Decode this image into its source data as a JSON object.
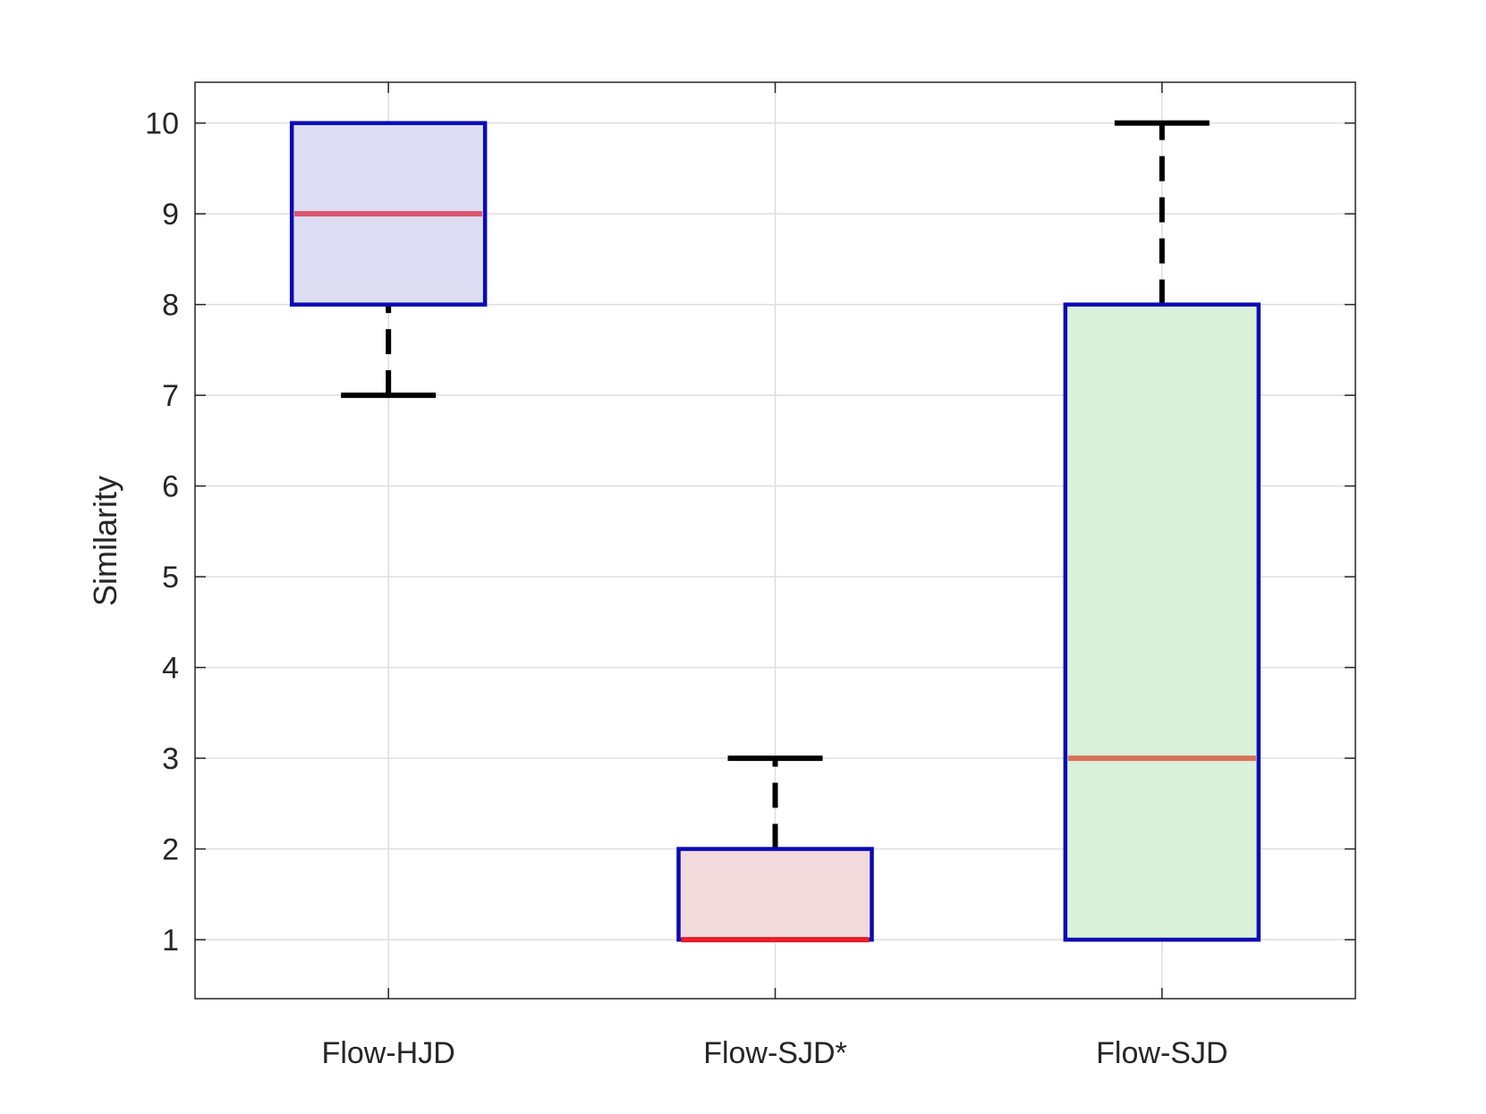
{
  "chart_data": {
    "type": "box",
    "title": "",
    "xlabel": "",
    "ylabel": "Similarity",
    "ylim": [
      0.35,
      10.45
    ],
    "yticks": [
      1,
      2,
      3,
      4,
      5,
      6,
      7,
      8,
      9,
      10
    ],
    "grid": true,
    "categories": [
      "Flow-HJD",
      "Flow-SJD*",
      "Flow-SJD"
    ],
    "boxes": [
      {
        "category": "Flow-HJD",
        "q1": 8,
        "median": 9,
        "q3": 10,
        "whisker_low": 7,
        "whisker_high": 10,
        "fill": "#dcdcf2",
        "median_color": "#d9556e"
      },
      {
        "category": "Flow-SJD*",
        "q1": 1,
        "median": 1,
        "q3": 2,
        "whisker_low": 1,
        "whisker_high": 3,
        "fill": "#f2d9db",
        "median_color": "#e8202a"
      },
      {
        "category": "Flow-SJD",
        "q1": 1,
        "median": 3,
        "q3": 8,
        "whisker_low": 1,
        "whisker_high": 10,
        "fill": "#d9f0d9",
        "median_color": "#d9705a"
      }
    ],
    "colors": {
      "box_edge": "#0a0ab4",
      "whisker": "#000000",
      "grid": "#dedede",
      "axis": "#262626"
    }
  }
}
